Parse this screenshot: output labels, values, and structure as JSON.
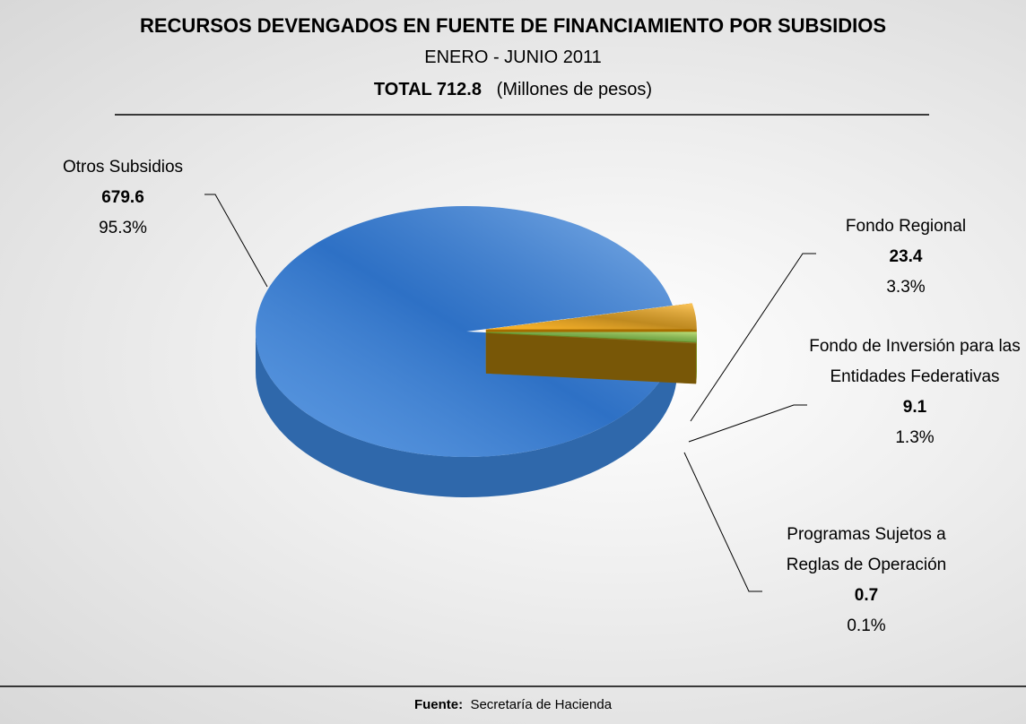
{
  "chart_data": {
    "type": "pie",
    "title": "RECURSOS DEVENGADOS EN FUENTE DE FINANCIAMIENTO POR SUBSIDIOS",
    "subtitle": "ENERO - JUNIO 2011",
    "total_label": "TOTAL 712.8",
    "units": "(Millones de pesos)",
    "source_label": "Fuente:",
    "source": "Secretaría de Hacienda",
    "categories": [
      "Otros Subsidios",
      "Fondo Regional",
      "Fondo de Inversión para las Entidades Federativas",
      "Programas Sujetos a Reglas de Operación"
    ],
    "values": [
      679.6,
      23.4,
      9.1,
      0.7
    ],
    "shares": [
      95.3,
      3.3,
      1.3,
      0.1
    ],
    "share_labels": [
      "95.3%",
      "3.3%",
      "1.3%",
      "0.1%"
    ],
    "colors": [
      "#3d86dc",
      "#ffa800",
      "#9acd32",
      "#b8860b"
    ]
  }
}
